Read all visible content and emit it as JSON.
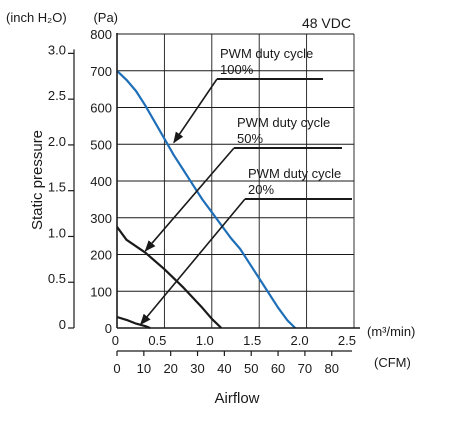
{
  "chart_data": {
    "type": "line",
    "condition_label": "48 VDC",
    "x_axis": {
      "label": "Airflow",
      "primary_unit": "(m³/min)",
      "primary_range": [
        0,
        2.5
      ],
      "primary_ticks": [
        {
          "value": 0,
          "label": "0"
        },
        {
          "value": 0.5,
          "label": "0.5"
        },
        {
          "value": 1.0,
          "label": "1.0"
        },
        {
          "value": 1.5,
          "label": "1.5"
        },
        {
          "value": 2.0,
          "label": "2.0"
        },
        {
          "value": 2.5,
          "label": "2.5"
        }
      ],
      "secondary_unit": "(CFM)",
      "secondary_ticks": [
        {
          "value": 0,
          "label": "0"
        },
        {
          "value": 10,
          "label": "10"
        },
        {
          "value": 20,
          "label": "20"
        },
        {
          "value": 30,
          "label": "30"
        },
        {
          "value": 40,
          "label": "40"
        },
        {
          "value": 50,
          "label": "50"
        },
        {
          "value": 60,
          "label": "60"
        },
        {
          "value": 70,
          "label": "70"
        },
        {
          "value": 80,
          "label": "80"
        }
      ]
    },
    "y_axis": {
      "label": "Static pressure",
      "primary_unit": "(Pa)",
      "primary_range": [
        0,
        800
      ],
      "primary_ticks": [
        {
          "value": 0,
          "label": "0"
        },
        {
          "value": 100,
          "label": "100"
        },
        {
          "value": 200,
          "label": "200"
        },
        {
          "value": 300,
          "label": "300"
        },
        {
          "value": 400,
          "label": "400"
        },
        {
          "value": 500,
          "label": "500"
        },
        {
          "value": 600,
          "label": "600"
        },
        {
          "value": 700,
          "label": "700"
        },
        {
          "value": 800,
          "label": "800"
        }
      ],
      "secondary_unit": "(inch H₂O)",
      "secondary_ticks": [
        {
          "value": 0,
          "label": "0"
        },
        {
          "value": 0.5,
          "label": "0.5"
        },
        {
          "value": 1.0,
          "label": "1.0"
        },
        {
          "value": 1.5,
          "label": "1.5"
        },
        {
          "value": 2.0,
          "label": "2.0"
        },
        {
          "value": 2.5,
          "label": "2.5"
        },
        {
          "value": 3.0,
          "label": "3.0"
        }
      ]
    },
    "grid": true,
    "series": [
      {
        "label_lines": [
          "PWM duty cycle",
          "100%"
        ],
        "color": "#1f6fb8",
        "points": [
          [
            0,
            700
          ],
          [
            0.1,
            675
          ],
          [
            0.2,
            645
          ],
          [
            0.3,
            605
          ],
          [
            0.4,
            560
          ],
          [
            0.5,
            515
          ],
          [
            0.6,
            470
          ],
          [
            0.7,
            430
          ],
          [
            0.8,
            390
          ],
          [
            0.9,
            350
          ],
          [
            1.0,
            315
          ],
          [
            1.1,
            280
          ],
          [
            1.2,
            245
          ],
          [
            1.3,
            215
          ],
          [
            1.4,
            175
          ],
          [
            1.5,
            135
          ],
          [
            1.6,
            95
          ],
          [
            1.7,
            55
          ],
          [
            1.8,
            20
          ],
          [
            1.88,
            0
          ]
        ],
        "label_anchor": [
          0.6,
          505
        ]
      },
      {
        "label_lines": [
          "PWM duty cycle",
          "50%"
        ],
        "color": "#1a1a1a",
        "points": [
          [
            0,
            275
          ],
          [
            0.1,
            240
          ],
          [
            0.3,
            205
          ],
          [
            0.5,
            160
          ],
          [
            0.7,
            110
          ],
          [
            0.9,
            55
          ],
          [
            1.0,
            25
          ],
          [
            1.1,
            0
          ]
        ],
        "label_anchor": [
          0.3,
          210
        ]
      },
      {
        "label_lines": [
          "PWM duty cycle",
          "20%"
        ],
        "color": "#1a1a1a",
        "points": [
          [
            0,
            30
          ],
          [
            0.1,
            22
          ],
          [
            0.2,
            12
          ],
          [
            0.3,
            5
          ],
          [
            0.35,
            0
          ]
        ],
        "label_anchor": [
          0.25,
          10
        ]
      }
    ],
    "annotations": [
      {
        "text_lines": [
          "PWM duty cycle",
          "100%"
        ],
        "position": "upper-right",
        "points_to": [
          0.6,
          505
        ]
      },
      {
        "text_lines": [
          "PWM duty cycle",
          "50%"
        ],
        "position": "right",
        "points_to": [
          0.3,
          210
        ]
      },
      {
        "text_lines": [
          "PWM duty cycle",
          "20%"
        ],
        "position": "right",
        "points_to": [
          0.25,
          10
        ]
      }
    ]
  }
}
